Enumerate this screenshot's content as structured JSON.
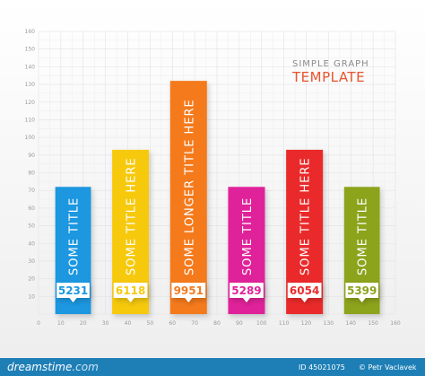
{
  "chart_data": {
    "type": "bar",
    "title_line1": "SIMPLE GRAPH",
    "title_line2": "TEMPLATE",
    "xlim": [
      0,
      160
    ],
    "ylim": [
      0,
      160
    ],
    "x_ticks": [
      0,
      10,
      20,
      30,
      40,
      50,
      60,
      70,
      80,
      90,
      100,
      110,
      120,
      130,
      140,
      150,
      160
    ],
    "y_ticks": [
      10,
      20,
      30,
      40,
      50,
      60,
      70,
      80,
      90,
      100,
      110,
      120,
      130,
      140,
      150,
      160
    ],
    "grid": true,
    "bars": [
      {
        "title": "SOME TITLE",
        "value_label": "5231",
        "height": 72,
        "x_start": 7.5,
        "x_end": 23.5,
        "color": "#1a97e0"
      },
      {
        "title": "SOME TITLE HERE",
        "value_label": "6118",
        "height": 93,
        "x_start": 33,
        "x_end": 49.5,
        "color": "#f6c90e"
      },
      {
        "title": "SOME LONGER TITLE HERE",
        "value_label": "9951",
        "height": 132,
        "x_start": 59,
        "x_end": 75.5,
        "color": "#f47a1f"
      },
      {
        "title": "SOME TITLE",
        "value_label": "5289",
        "height": 72,
        "x_start": 85,
        "x_end": 101.5,
        "color": "#e0239a"
      },
      {
        "title": "SOME TITLE HERE",
        "value_label": "6054",
        "height": 93,
        "x_start": 111,
        "x_end": 127.5,
        "color": "#ea2c2c"
      },
      {
        "title": "SOME TITLE",
        "value_label": "5399",
        "height": 72,
        "x_start": 137,
        "x_end": 153,
        "color": "#8ca31d"
      }
    ]
  },
  "footer": {
    "brand": "dreamstime",
    "brand_tld": ".com",
    "stock_id": "ID 45021075",
    "credit": "© Petr Vaclavek"
  }
}
